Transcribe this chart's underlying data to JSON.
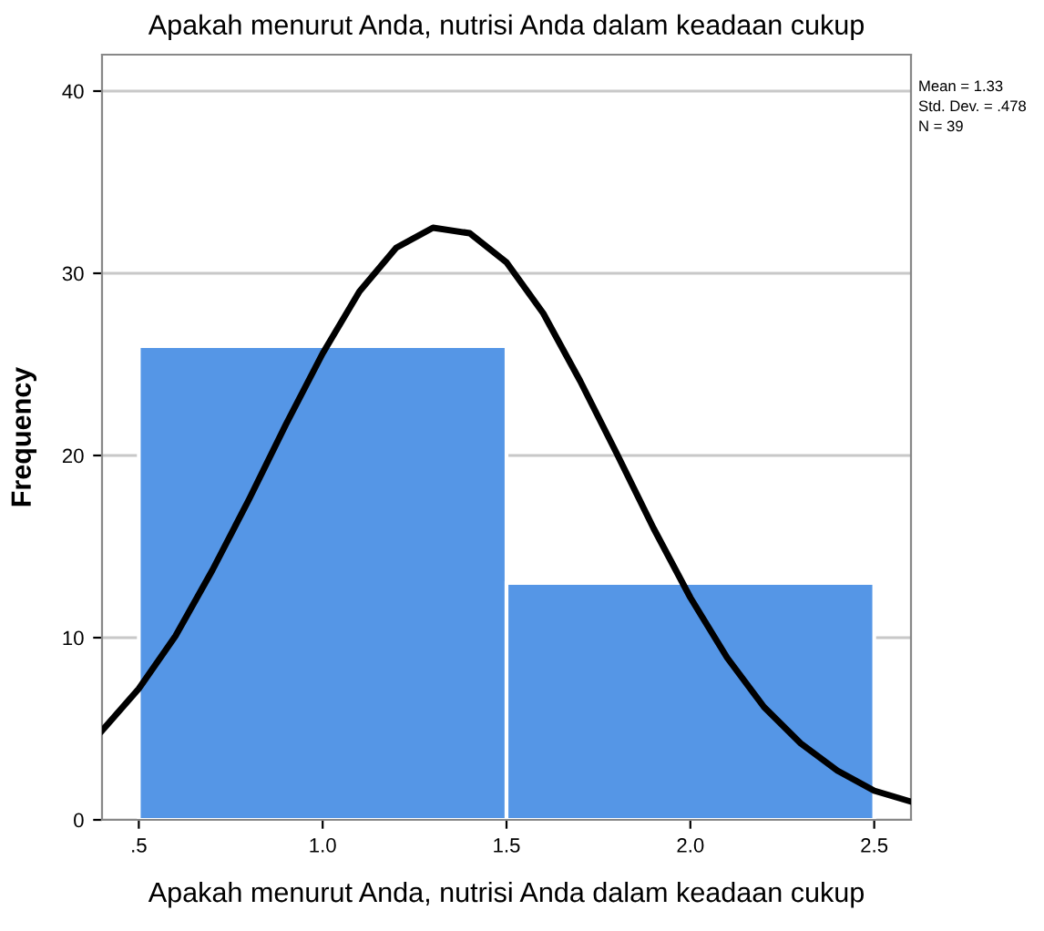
{
  "chart_data": {
    "type": "histogram",
    "title": "Apakah menurut Anda, nutrisi Anda dalam keadaan cukup",
    "xlabel": "Apakah menurut Anda, nutrisi Anda dalam keadaan cukup",
    "ylabel": "Frequency",
    "bins": [
      0.5,
      1.5,
      2.5
    ],
    "values": [
      26,
      13
    ],
    "color": "#5596e6",
    "series": [
      {
        "type": "line",
        "color": "#000000",
        "x": [
          0.4,
          0.5,
          0.6,
          0.7,
          0.8,
          0.9,
          1.0,
          1.1,
          1.2,
          1.3,
          1.4,
          1.5,
          1.6,
          1.7,
          1.8,
          1.9,
          2.0,
          2.1,
          2.2,
          2.3,
          2.4,
          2.5,
          2.6
        ],
        "values": [
          4.9,
          7.2,
          10.1,
          13.7,
          17.6,
          21.7,
          25.6,
          29.0,
          31.4,
          32.5,
          32.2,
          30.6,
          27.8,
          24.1,
          20.1,
          16.0,
          12.2,
          8.9,
          6.2,
          4.2,
          2.7,
          1.6,
          1.0
        ]
      }
    ],
    "annotations": [
      "Mean = 1.33",
      "Std. Dev. = .478",
      "N = 39"
    ],
    "xlim": [
      0.4,
      2.6
    ],
    "xticks": [
      {
        "value": 0.5,
        "label": ".5"
      },
      {
        "value": 1.0,
        "label": "1.0"
      },
      {
        "value": 1.5,
        "label": "1.5"
      },
      {
        "value": 2.0,
        "label": "2.0"
      },
      {
        "value": 2.5,
        "label": "2.5"
      }
    ],
    "ylim": [
      0,
      42
    ],
    "yticks": [
      0,
      10,
      20,
      30,
      40
    ],
    "grid": "y",
    "legend": false
  }
}
